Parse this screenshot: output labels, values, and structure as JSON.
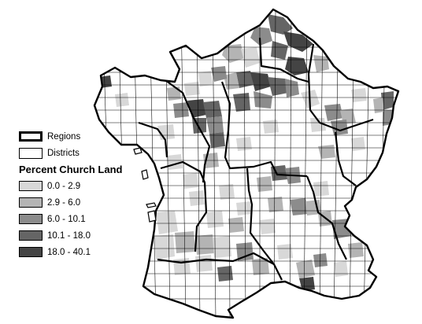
{
  "legend": {
    "regions_label": "Regions",
    "districts_label": "Districts",
    "title": "Percent Church Land",
    "classes": [
      {
        "label": "0.0 - 2.9",
        "color": "#d8d8d8"
      },
      {
        "label": "2.9 - 6.0",
        "color": "#b4b4b4"
      },
      {
        "label": "6.0 - 10.1",
        "color": "#8c8c8c"
      },
      {
        "label": "10.1 - 18.0",
        "color": "#656565"
      },
      {
        "label": "18.0 - 40.1",
        "color": "#444444"
      }
    ]
  },
  "colors": {
    "background": "#ffffff",
    "no_data": "#ffffff",
    "boundary": "#000000"
  }
}
